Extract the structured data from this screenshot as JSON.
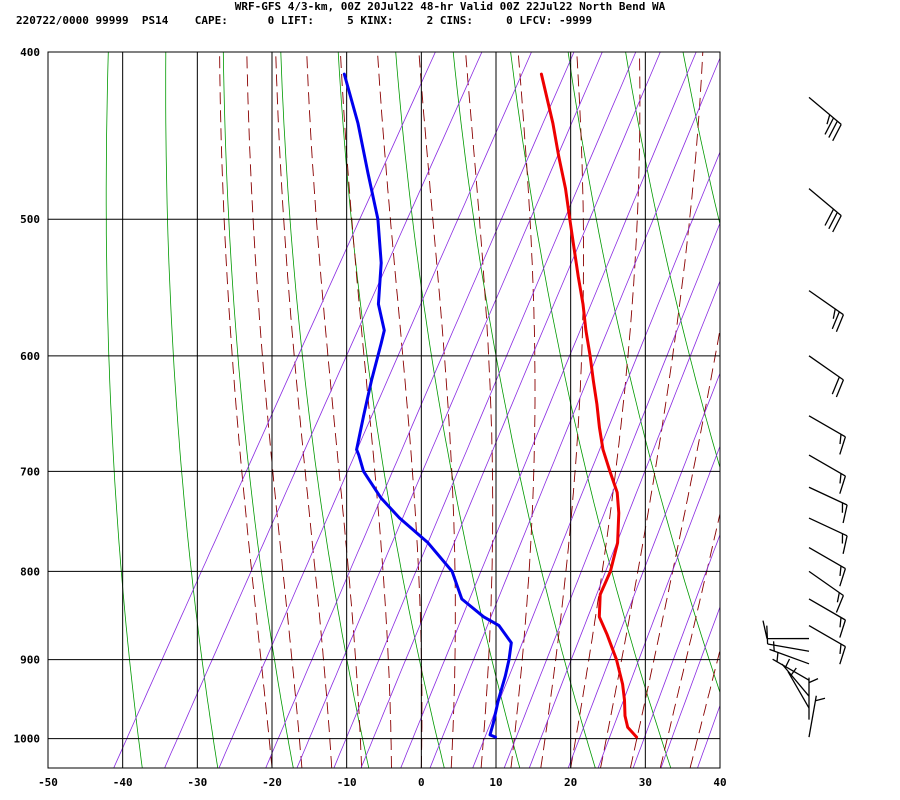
{
  "header": {
    "title_line": "WRF-GFS 4/3-km, 00Z 20Jul22 48-hr Valid 00Z 22Jul22 North Bend WA",
    "stats_line": "220722/0000 99999  PS14    CAPE:      0 LIFT:     5 KINX:     2 CINS:     0 LFCV: -9999"
  },
  "colors": {
    "temperature": "#ee0000",
    "dewpoint": "#0000ee",
    "dry_adiabat": "#009900",
    "moist_adiabat": "#8a0000",
    "mixing_ratio": "#8a2be2",
    "grid": "#000000",
    "wind_barb": "#000000"
  },
  "chart_data": {
    "type": "line",
    "chart_kind": "skew-T log-p sounding",
    "y_scale": "log",
    "xlim": [
      -50,
      40
    ],
    "ylim": [
      1040,
      400
    ],
    "x_ticks": [
      -50,
      -40,
      -30,
      -20,
      -10,
      0,
      10,
      20,
      30,
      40
    ],
    "y_ticks": [
      400,
      500,
      600,
      700,
      800,
      900,
      1000
    ],
    "grid": true,
    "series": [
      {
        "key": "temperature",
        "pressure": [
          998,
          985,
          970,
          950,
          930,
          900,
          870,
          850,
          825,
          800,
          770,
          740,
          720,
          700,
          680,
          660,
          640,
          620,
          600,
          580,
          560,
          540,
          520,
          500,
          480,
          460,
          440,
          412
        ],
        "values": [
          26.6,
          24.7,
          23.5,
          22.3,
          20.9,
          18.3,
          15.2,
          12.9,
          11.4,
          11.1,
          10.0,
          8.0,
          6.3,
          3.8,
          1.3,
          -0.8,
          -2.8,
          -5.0,
          -7.2,
          -9.6,
          -11.9,
          -14.5,
          -17.1,
          -19.8,
          -22.6,
          -25.8,
          -29.0,
          -34.1
        ]
      },
      {
        "key": "dewpoint",
        "pressure": [
          998,
          995,
          980,
          950,
          920,
          900,
          880,
          860,
          850,
          830,
          800,
          770,
          745,
          725,
          700,
          685,
          680,
          650,
          620,
          590,
          580,
          560,
          530,
          500,
          470,
          440,
          412
        ],
        "values": [
          7.7,
          6.8,
          6.4,
          5.4,
          4.6,
          3.9,
          3.0,
          0.1,
          -2.6,
          -6.8,
          -10.1,
          -15.4,
          -21.0,
          -25.0,
          -29.2,
          -31.0,
          -31.7,
          -33.2,
          -34.7,
          -36.1,
          -36.6,
          -39.3,
          -41.9,
          -45.5,
          -50.2,
          -55.1,
          -60.5
        ]
      }
    ],
    "wind_barbs": [
      {
        "pressure": 998,
        "dir": 190,
        "speed": 5
      },
      {
        "pressure": 975,
        "dir": 180,
        "speed": 5
      },
      {
        "pressure": 960,
        "dir": 150,
        "speed": 5
      },
      {
        "pressure": 945,
        "dir": 140,
        "speed": 5
      },
      {
        "pressure": 925,
        "dir": 120,
        "speed": 5
      },
      {
        "pressure": 905,
        "dir": 110,
        "speed": 5
      },
      {
        "pressure": 890,
        "dir": 100,
        "speed": 10
      },
      {
        "pressure": 875,
        "dir": 90,
        "speed": 10
      },
      {
        "pressure": 860,
        "dir": 300,
        "speed": 15
      },
      {
        "pressure": 830,
        "dir": 300,
        "speed": 15
      },
      {
        "pressure": 800,
        "dir": 305,
        "speed": 15
      },
      {
        "pressure": 775,
        "dir": 300,
        "speed": 15
      },
      {
        "pressure": 745,
        "dir": 295,
        "speed": 15
      },
      {
        "pressure": 715,
        "dir": 295,
        "speed": 15
      },
      {
        "pressure": 685,
        "dir": 300,
        "speed": 15
      },
      {
        "pressure": 650,
        "dir": 300,
        "speed": 15
      },
      {
        "pressure": 600,
        "dir": 305,
        "speed": 20
      },
      {
        "pressure": 550,
        "dir": 305,
        "speed": 25
      },
      {
        "pressure": 480,
        "dir": 310,
        "speed": 30
      },
      {
        "pressure": 425,
        "dir": 310,
        "speed": 35
      }
    ]
  }
}
